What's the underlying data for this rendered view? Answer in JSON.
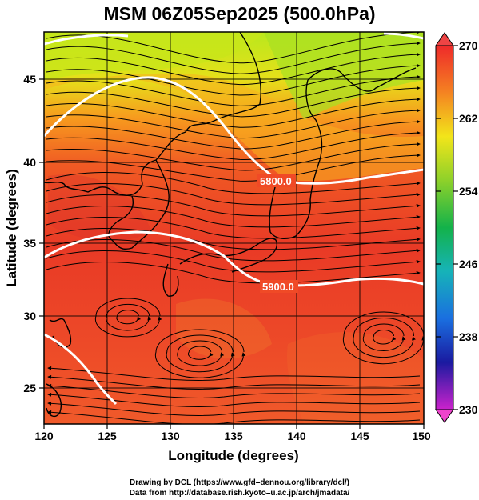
{
  "title": "MSM 06Z05Sep2025 (500.0hPa)",
  "x_axis": {
    "label": "Longitude (degrees)",
    "ticks": [
      "120",
      "125",
      "130",
      "135",
      "140",
      "145",
      "150"
    ],
    "range": [
      120,
      150
    ]
  },
  "y_axis": {
    "label": "Latitude (degrees)",
    "ticks": [
      "25",
      "30",
      "35",
      "40",
      "45"
    ],
    "range": [
      22.5,
      47.5
    ]
  },
  "colorbar": {
    "ticks": [
      "270",
      "262",
      "254",
      "246",
      "238",
      "230"
    ],
    "range": [
      230,
      270
    ]
  },
  "contours": [
    {
      "label": "5800.0"
    },
    {
      "label": "5900.0"
    }
  ],
  "credits": {
    "line1": "Drawing by DCL (https://www.gfd–dennou.org/library/dcl/)",
    "line2": "Data from http://database.rish.kyoto–u.ac.jp/arch/jmadata/"
  }
}
